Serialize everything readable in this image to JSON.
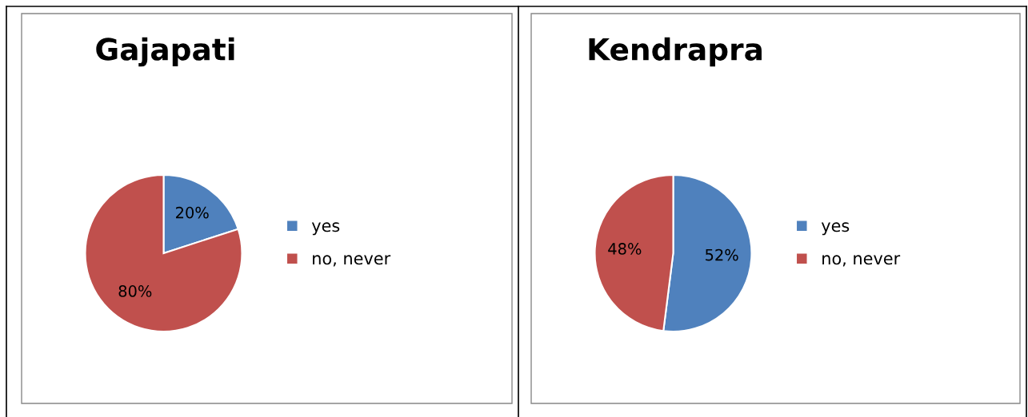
{
  "chart_data": [
    {
      "type": "pie",
      "title": "Gajapati",
      "categories": [
        "yes",
        "no, never"
      ],
      "values": [
        20,
        80
      ],
      "colors": [
        "#4f81bd",
        "#c0504d"
      ],
      "value_labels": [
        "20%",
        "80%"
      ],
      "legend": "right"
    },
    {
      "type": "pie",
      "title": "Kendrapra",
      "categories": [
        "yes",
        "no, never"
      ],
      "values": [
        52,
        48
      ],
      "colors": [
        "#4f81bd",
        "#c0504d"
      ],
      "value_labels": [
        "52%",
        "48%"
      ],
      "legend": "right"
    }
  ]
}
